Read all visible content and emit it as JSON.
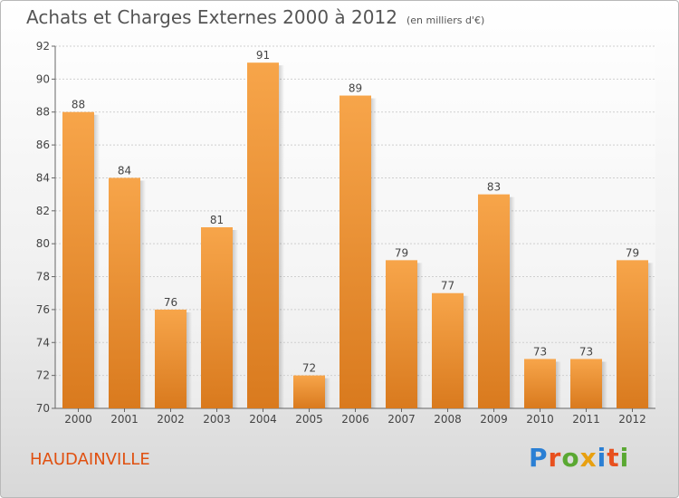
{
  "title": "Achats et Charges Externes 2000 à 2012",
  "subtitle": "(en milliers d'€)",
  "commune": "HAUDAINVILLE",
  "logo": "Proxiti",
  "colors": {
    "bar_light": "#f7a54a",
    "bar_dark": "#d97a1e",
    "commune_text": "#e05010",
    "logo_letters": [
      "#2a7fd4",
      "#e8501e",
      "#5aa832",
      "#e8a010",
      "#2a7fd4",
      "#e8501e",
      "#5aa832"
    ]
  },
  "chart_data": {
    "type": "bar",
    "title": "Achats et Charges Externes 2000 à 2012",
    "subtitle": "(en milliers d'€)",
    "categories": [
      "2000",
      "2001",
      "2002",
      "2003",
      "2004",
      "2005",
      "2006",
      "2007",
      "2008",
      "2009",
      "2010",
      "2011",
      "2012"
    ],
    "values": [
      88,
      84,
      76,
      81,
      91,
      72,
      89,
      79,
      77,
      83,
      73,
      73,
      79
    ],
    "ylim": [
      70,
      92
    ],
    "yticks": [
      70,
      72,
      74,
      76,
      78,
      80,
      82,
      84,
      86,
      88,
      90,
      92
    ],
    "grid": true,
    "xlabel": "",
    "ylabel": ""
  }
}
